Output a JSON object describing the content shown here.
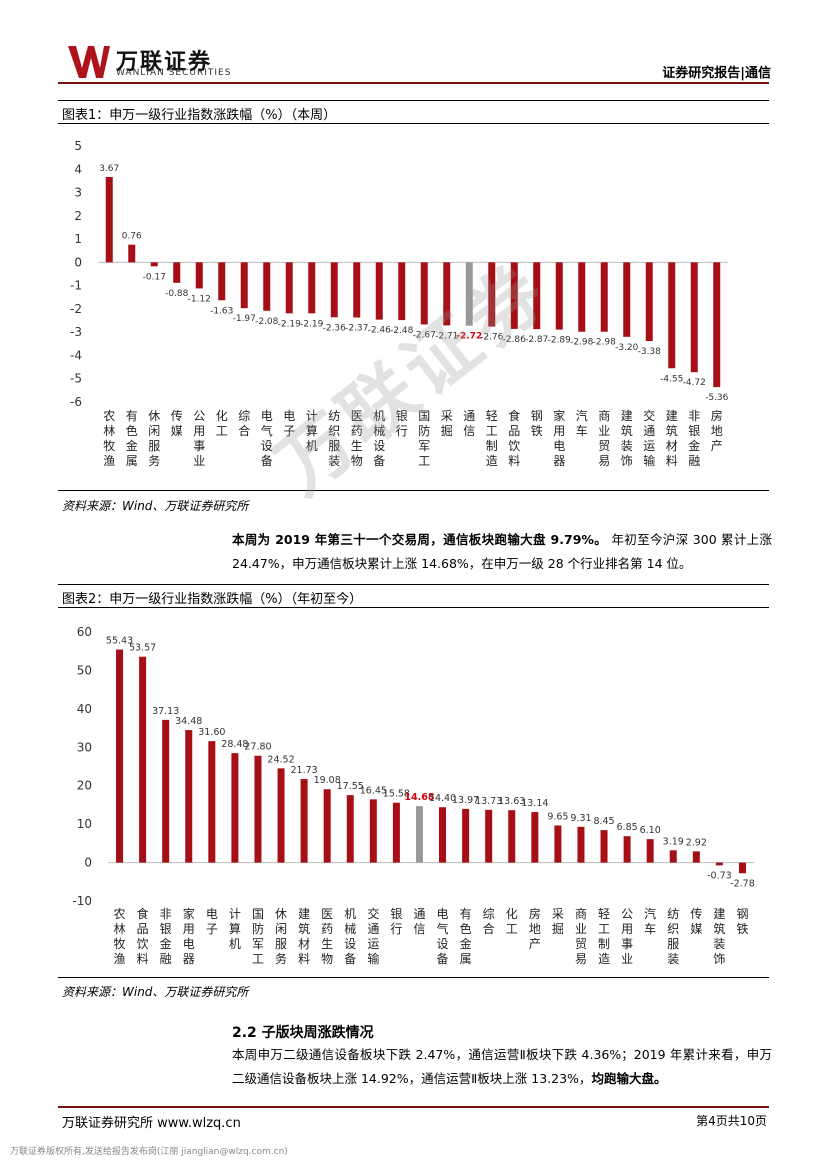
{
  "header": {
    "logo_cn": "万联证券",
    "logo_en": "WANLIAN SECURITIES",
    "report_type": "证券研究报告|通信"
  },
  "figure1": {
    "title": "图表1：申万一级行业指数涨跌幅（%）（本周）",
    "source": "资料来源：Wind、万联证券研究所"
  },
  "paragraph1": {
    "bold": "本周为 2019 年第三十一个交易周，通信板块跑输大盘 9.79%。",
    "rest": "年初至今沪深 300 累计上涨 24.47%，申万通信板块累计上涨 14.68%，在申万一级 28 个行业排名第 14 位。"
  },
  "figure2": {
    "title": "图表2：申万一级行业指数涨跌幅（%）（年初至今）",
    "source": "资料来源：Wind、万联证券研究所"
  },
  "section": {
    "title": "2.2 子版块周涨跌情况",
    "text": "本周申万二级通信设备板块下跌 2.47%，通信运营Ⅱ板块下跌 4.36%；2019 年累计来看，申万二级通信设备板块上涨 14.92%，通信运营Ⅱ板块上涨 13.23%，",
    "text_bold": "均跑输大盘。"
  },
  "footer": {
    "left": "万联证券研究所 www.wlzq.cn",
    "right": "第4页共10页",
    "copyright": "万联证券版权所有,发送给报告发布岗(江丽 jianglian@wlzq.com.cn)"
  },
  "watermark": "万联证券",
  "colors": {
    "bar": "#a50f15",
    "highlight": "#999999",
    "brand": "#7b0d14"
  },
  "chart_data": [
    {
      "type": "bar",
      "title": "申万一级行业指数涨跌幅（%）（本周）",
      "categories": [
        "农林牧渔",
        "有色金属",
        "休闲服务",
        "传媒",
        "公用事业",
        "化工",
        "综合",
        "电气设备",
        "电子",
        "计算机",
        "纺织服装",
        "医药生物",
        "机械设备",
        "银行",
        "国防军工",
        "采掘",
        "通信",
        "轻工制造",
        "食品饮料",
        "钢铁",
        "家用电器",
        "汽车",
        "商业贸易",
        "建筑装饰",
        "交通运输",
        "建筑材料",
        "非银金融",
        "房地产"
      ],
      "values": [
        3.67,
        0.76,
        -0.17,
        -0.88,
        -1.12,
        -1.63,
        -1.97,
        -2.08,
        -2.19,
        -2.19,
        -2.36,
        -2.37,
        -2.46,
        -2.48,
        -2.67,
        -2.71,
        -2.72,
        -2.76,
        -2.86,
        -2.87,
        -2.89,
        -2.98,
        -2.98,
        -3.2,
        -3.38,
        -4.55,
        -4.72,
        -5.36
      ],
      "value_labels": [
        "3.67",
        "0.76",
        "-0.17",
        "-0.88",
        "-1.12",
        "-1.63",
        "-1.97",
        "-2.08",
        "-2.19",
        "-2.19",
        "-2.36",
        "-2.37",
        "-2.46",
        "-2.48",
        "-2.67",
        "-2.71",
        "-2.72",
        "-2.76",
        "-2.86",
        "-2.87",
        "-2.89",
        "-2.98",
        "-2.98",
        "-3.20",
        "-3.38",
        "-4.55",
        "-4.72",
        "-5.36"
      ],
      "highlight": "通信",
      "ylim": [
        -6,
        5
      ],
      "yticks": [
        "5",
        "4",
        "3",
        "2",
        "1",
        "0",
        "-1",
        "-2",
        "-3",
        "-4",
        "-5",
        "-6"
      ]
    },
    {
      "type": "bar",
      "title": "申万一级行业指数涨跌幅（%）（年初至今）",
      "categories": [
        "农林牧渔",
        "食品饮料",
        "非银金融",
        "家用电器",
        "电子",
        "计算机",
        "国防军工",
        "休闲服务",
        "建筑材料",
        "医药生物",
        "机械设备",
        "交通运输",
        "银行",
        "通信",
        "电气设备",
        "有色金属",
        "综合",
        "化工",
        "房地产",
        "采掘",
        "商业贸易",
        "轻工制造",
        "公用事业",
        "汽车",
        "纺织服装",
        "传媒",
        "建筑装饰",
        "钢铁"
      ],
      "values": [
        55.43,
        53.57,
        37.13,
        34.48,
        31.6,
        28.48,
        27.8,
        24.52,
        21.73,
        19.08,
        17.55,
        16.45,
        15.58,
        14.68,
        14.4,
        13.97,
        13.73,
        13.63,
        13.14,
        9.65,
        9.31,
        8.45,
        6.85,
        6.1,
        3.19,
        2.92,
        -0.73,
        -2.78
      ],
      "value_labels": [
        "55.43",
        "53.57",
        "37.13",
        "34.48",
        "31.60",
        "28.48",
        "27.80",
        "24.52",
        "21.73",
        "19.08",
        "17.55",
        "16.45",
        "15.58",
        "14.68",
        "14.40",
        "13.97",
        "13.73",
        "13.63",
        "13.14",
        "9.65",
        "9.31",
        "8.45",
        "6.85",
        "6.10",
        "3.19",
        "2.92",
        "-0.73",
        "-2.78"
      ],
      "highlight": "通信",
      "ylim": [
        -10,
        60
      ],
      "yticks": [
        "60",
        "50",
        "40",
        "30",
        "20",
        "10",
        "0",
        "-10"
      ]
    }
  ]
}
